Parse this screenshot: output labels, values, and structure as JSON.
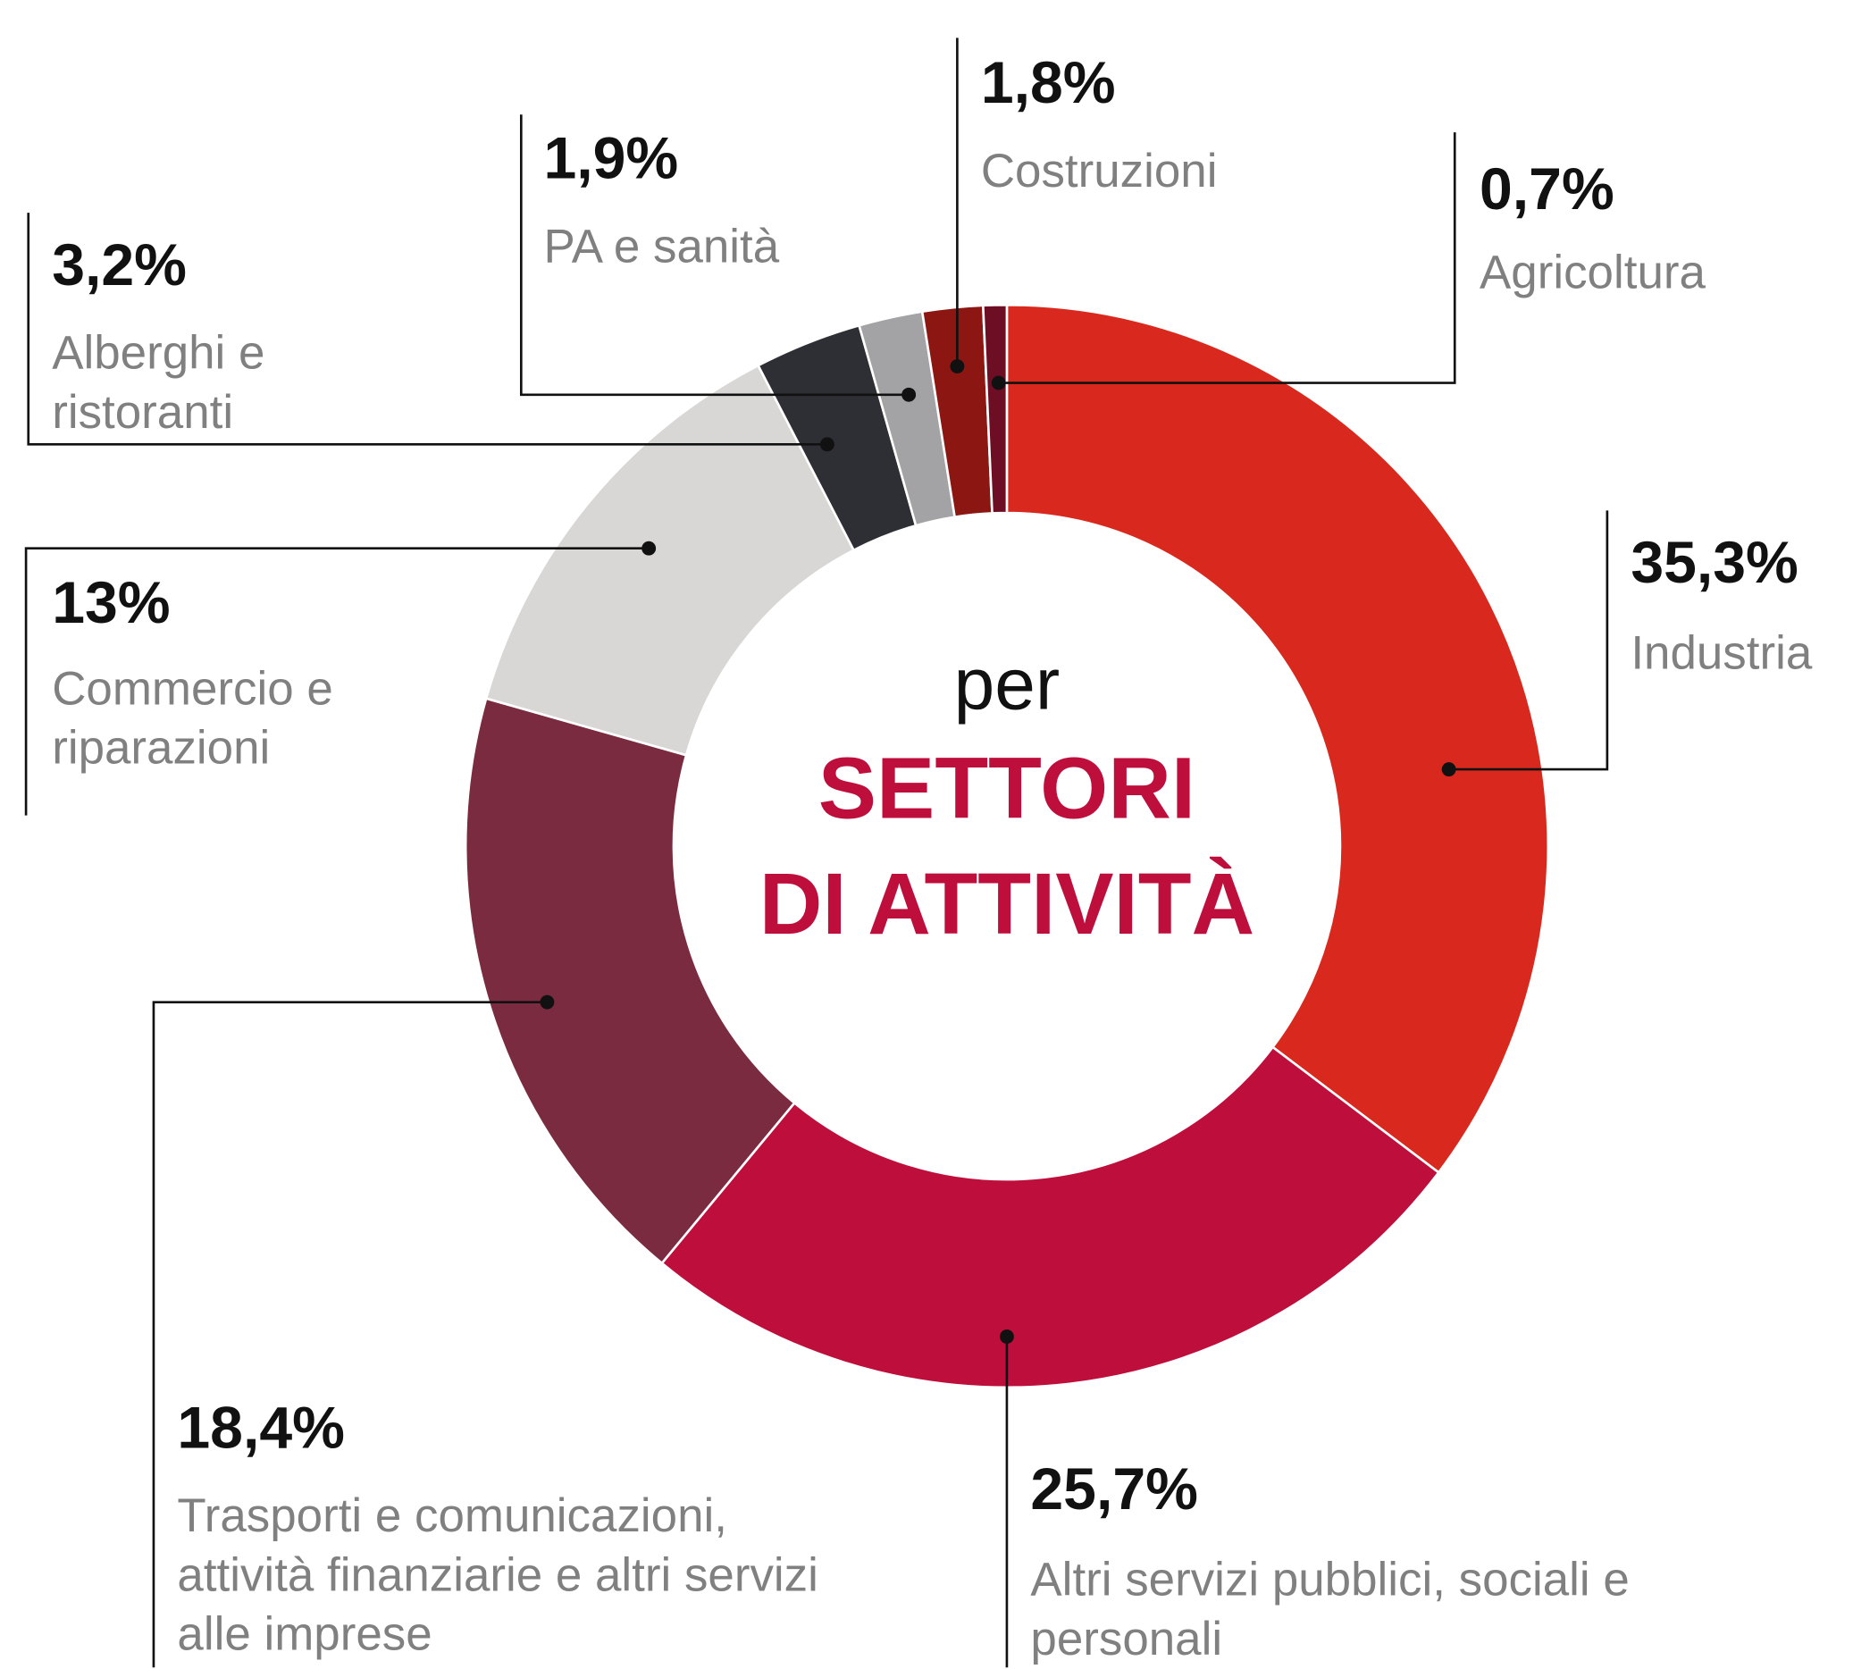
{
  "chart_data": {
    "type": "pie",
    "center_text": [
      "per",
      "SETTORI",
      "DI ATTIVITÀ"
    ],
    "categories": [
      "Industria",
      "Altri servizi pubblici, sociali e personali",
      "Trasporti e comunicazioni, attività finanziarie e altri servizi alle imprese",
      "Commercio e riparazioni",
      "Alberghi e ristoranti",
      "PA e sanità",
      "Costruzioni",
      "Agricoltura"
    ],
    "values": [
      35.3,
      25.7,
      18.4,
      13,
      3.2,
      1.9,
      1.8,
      0.7
    ],
    "value_labels": [
      "35,3%",
      "25,7%",
      "18,4%",
      "13%",
      "3,2%",
      "1,9%",
      "1,8%",
      "0,7%"
    ],
    "colors": [
      "#d9291e",
      "#be0e3c",
      "#7a2b3f",
      "#d8d7d6",
      "#2e2f34",
      "#a3a3a6",
      "#8b1612",
      "#6e0e24"
    ]
  }
}
